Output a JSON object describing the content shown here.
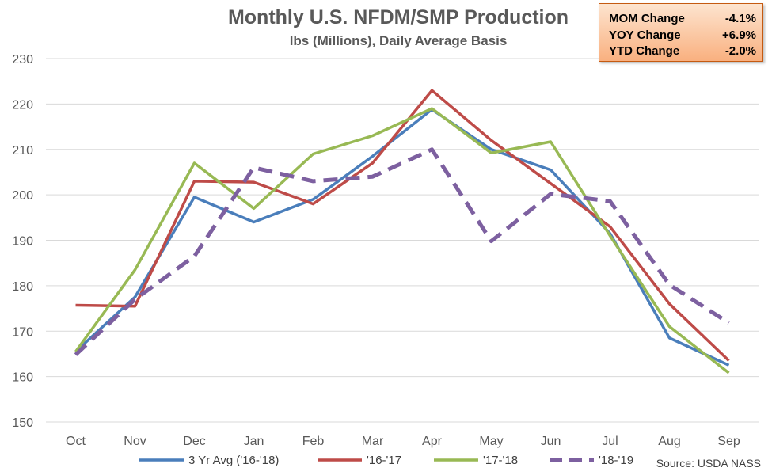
{
  "chart_data": {
    "type": "line",
    "title": "Monthly U.S. NFDM/SMP Production",
    "subtitle": "lbs (Millions), Daily Average Basis",
    "categories": [
      "Oct",
      "Nov",
      "Dec",
      "Jan",
      "Feb",
      "Mar",
      "Apr",
      "May",
      "Jun",
      "Jul",
      "Aug",
      "Sep"
    ],
    "ylim": [
      150,
      230
    ],
    "yticks": [
      150,
      160,
      170,
      180,
      190,
      200,
      210,
      220,
      230
    ],
    "grid": true,
    "legend_position": "bottom",
    "series": [
      {
        "name": "3 Yr Avg ('16-'18)",
        "color": "#4a7ebb",
        "dashed": false,
        "values": [
          165.5,
          177.5,
          199.5,
          194.0,
          199.0,
          208.5,
          218.8,
          210.0,
          205.5,
          191.5,
          168.5,
          162.5
        ]
      },
      {
        "name": "'16-'17",
        "color": "#be4b48",
        "dashed": false,
        "values": [
          175.7,
          175.5,
          203.0,
          202.8,
          198.0,
          207.0,
          223.0,
          212.0,
          202.5,
          193.0,
          176.0,
          163.5
        ]
      },
      {
        "name": "'17-'18",
        "color": "#98b954",
        "dashed": false,
        "values": [
          165.5,
          183.5,
          207.0,
          197.0,
          209.0,
          213.0,
          219.0,
          209.2,
          211.7,
          191.0,
          171.0,
          160.8
        ]
      },
      {
        "name": "'18-'19",
        "color": "#7d60a0",
        "dashed": true,
        "values": [
          164.8,
          177.0,
          186.5,
          206.0,
          203.0,
          204.0,
          210.0,
          189.8,
          200.2,
          198.6,
          180.2,
          171.8
        ]
      }
    ],
    "annotations": {
      "source": "Source: USDA NASS"
    }
  },
  "stats_box": {
    "rows": [
      {
        "label": "MOM Change",
        "value": "-4.1%"
      },
      {
        "label": "YOY Change",
        "value": "+6.9%"
      },
      {
        "label": "YTD Change",
        "value": "-2.0%"
      }
    ],
    "background_color": "#f9b07f"
  }
}
